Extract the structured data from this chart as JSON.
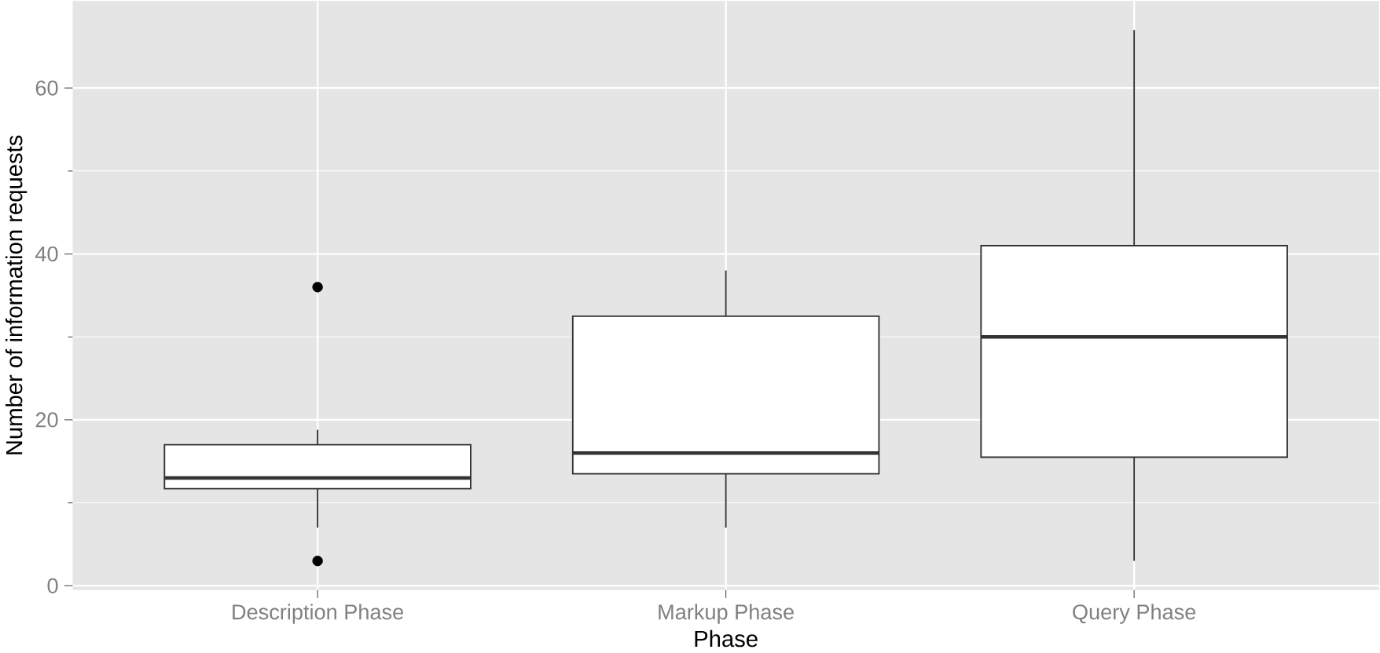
{
  "chart_data": {
    "type": "box",
    "xlabel": "Phase",
    "ylabel": "Number of information requests",
    "categories": [
      "Description Phase",
      "Markup Phase",
      "Query Phase"
    ],
    "boxes": [
      {
        "low": 7,
        "q1": 11.7,
        "median": 13,
        "q3": 17,
        "high": 18.8,
        "outliers": [
          36,
          3
        ]
      },
      {
        "low": 7,
        "q1": 13.5,
        "median": 16,
        "q3": 32.5,
        "high": 38
      },
      {
        "low": 3,
        "q1": 15.5,
        "median": 30,
        "q3": 41,
        "high": 67
      }
    ],
    "ylim": [
      -0.5,
      70.5
    ],
    "yticks": [
      0,
      20,
      40,
      60
    ],
    "grid": true
  }
}
